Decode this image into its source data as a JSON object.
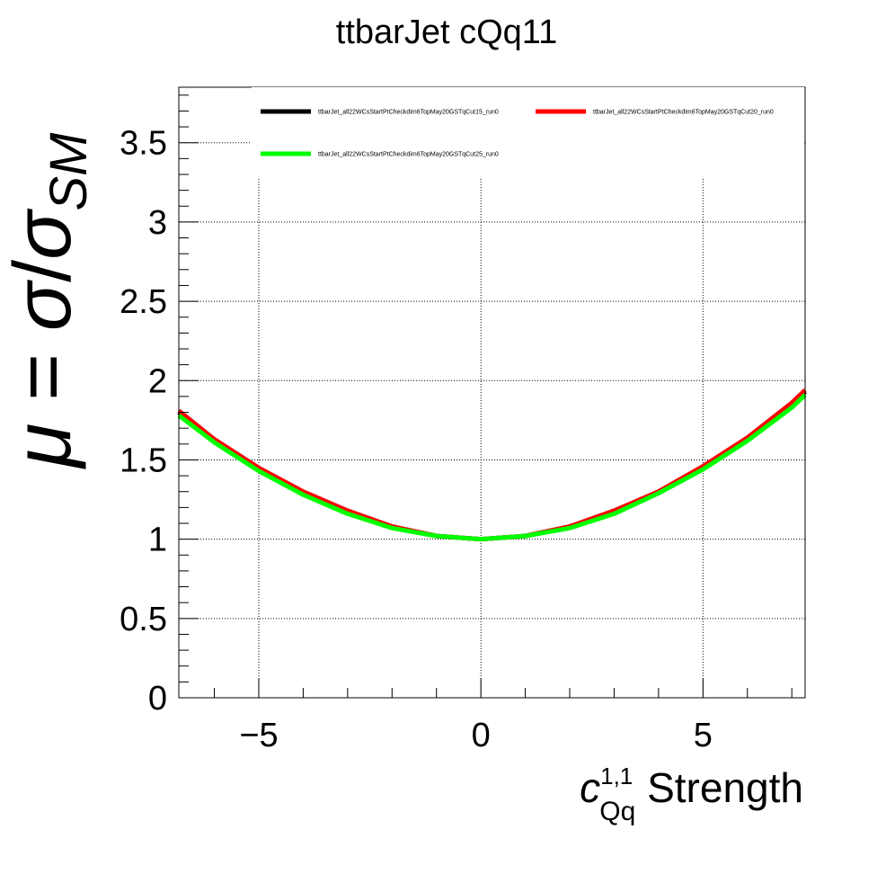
{
  "chart_data": {
    "type": "line",
    "title": "ttbarJet cQq11",
    "xlabel": {
      "base": "c",
      "superscript": "1,1",
      "subscript": "Qq",
      "suffix": " Strength"
    },
    "ylabel": {
      "mu": "μ",
      "equals": " = ",
      "sigma": "σ",
      "slash": "/",
      "sigma2": "σ",
      "subscript": "SM"
    },
    "xlim": [
      -6.8,
      7.3
    ],
    "ylim": [
      0,
      3.85
    ],
    "x_ticks": [
      -5,
      0,
      5
    ],
    "x_tick_labels": [
      "−5",
      "0",
      "5"
    ],
    "y_ticks": [
      0,
      0.5,
      1,
      1.5,
      2,
      2.5,
      3,
      3.5
    ],
    "y_tick_labels": [
      "0",
      "0.5",
      "1",
      "1.5",
      "2",
      "2.5",
      "3",
      "3.5"
    ],
    "grid": true,
    "legend_position": "top",
    "series": [
      {
        "name": "ttbarJet_all22WCsStartPtCheckdim6TopMay20GSTqCut15_run0",
        "color": "#000000",
        "x": [
          -6.8,
          -6,
          -5,
          -4,
          -3,
          -2,
          -1,
          0,
          1,
          2,
          3,
          4,
          5,
          6,
          7,
          7.3
        ],
        "y": [
          1.8,
          1.62,
          1.44,
          1.29,
          1.17,
          1.08,
          1.02,
          1.0,
          1.02,
          1.08,
          1.17,
          1.3,
          1.45,
          1.63,
          1.85,
          1.93
        ]
      },
      {
        "name": "ttbarJet_all22WCsStartPtCheckdim6TopMay20GSTqCut20_run0",
        "color": "#ff0000",
        "x": [
          -6.8,
          -6,
          -5,
          -4,
          -3,
          -2,
          -1,
          0,
          1,
          2,
          3,
          4,
          5,
          6,
          7,
          7.3
        ],
        "y": [
          1.81,
          1.63,
          1.45,
          1.3,
          1.18,
          1.08,
          1.02,
          1.0,
          1.02,
          1.08,
          1.18,
          1.3,
          1.46,
          1.64,
          1.86,
          1.94
        ]
      },
      {
        "name": "ttbarJet_all22WCsStartPtCheckdim6TopMay20GSTqCut25_run0",
        "color": "#00ff00",
        "x": [
          -6.8,
          -6,
          -5,
          -4,
          -3,
          -2,
          -1,
          0,
          1,
          2,
          3,
          4,
          5,
          6,
          7,
          7.3
        ],
        "y": [
          1.78,
          1.61,
          1.43,
          1.28,
          1.16,
          1.07,
          1.02,
          1.0,
          1.02,
          1.07,
          1.16,
          1.29,
          1.44,
          1.62,
          1.83,
          1.91
        ]
      }
    ]
  }
}
